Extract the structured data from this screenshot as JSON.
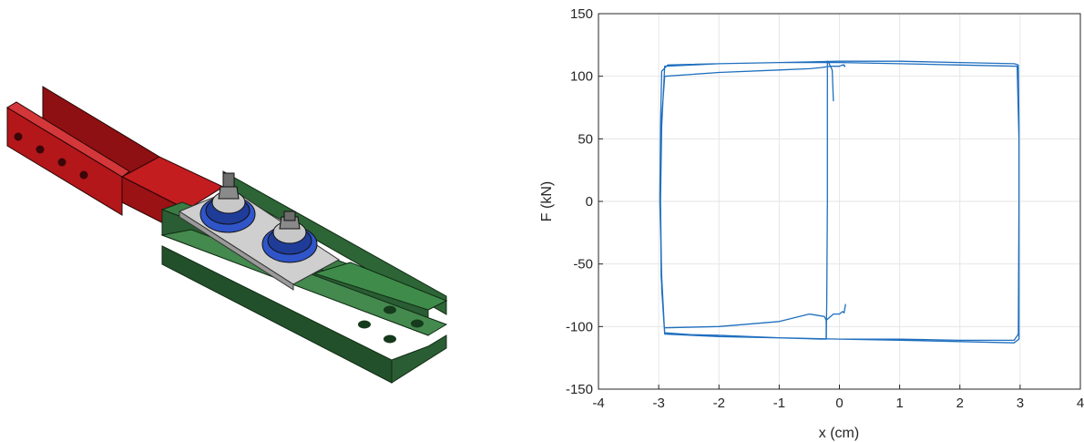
{
  "illustration": {
    "subject": "bolted friction damper assembly",
    "colors": {
      "red_member": "#c0181a",
      "green_member": "#2e6a37",
      "plate": "#cfcfcf",
      "washer": "#2f55c9",
      "bolt": "#8a8a8a"
    }
  },
  "chart_data": {
    "type": "line",
    "title": "",
    "xlabel": "x (cm)",
    "ylabel": "F (kN)",
    "xlim": [
      -4,
      4
    ],
    "ylim": [
      -150,
      150
    ],
    "xticks": [
      -4,
      -3,
      -2,
      -1,
      0,
      1,
      2,
      3,
      4
    ],
    "yticks": [
      -150,
      -100,
      -50,
      0,
      50,
      100,
      150
    ],
    "grid": true,
    "line_color": "#1f6fbf",
    "series": [
      {
        "x": [
          -0.1,
          -0.12,
          -0.18,
          -0.2,
          -0.2,
          -0.21,
          -0.22,
          -0.3,
          -1.0,
          -2.0,
          -2.9,
          -2.95,
          -2.97,
          -2.95,
          -2.9,
          -2.0,
          -1.0,
          0.0,
          1.0,
          2.0,
          2.9,
          2.97,
          2.98,
          2.98,
          2.97,
          2.9,
          2.0,
          1.0,
          0.0,
          -1.0,
          -2.0,
          -2.9,
          -2.95,
          -2.98,
          -2.97,
          -2.95,
          -2.85,
          -2.0,
          -1.0,
          0.0,
          1.0,
          2.0,
          2.95,
          2.98,
          2.98,
          2.9,
          2.0,
          1.0,
          0.0,
          -1.0,
          -2.0,
          -2.9,
          -2.96,
          -2.97,
          -2.96,
          -2.9,
          -2.0,
          -1.0,
          -0.5,
          -0.3,
          -0.15,
          0.0,
          0.05,
          0.08,
          0.08,
          0.1
        ],
        "y": [
          80,
          105,
          111,
          112,
          0,
          -80,
          -110,
          -110,
          -109,
          -107,
          -106,
          -70,
          0,
          60,
          108,
          110,
          111,
          112,
          112,
          111,
          110,
          109,
          60,
          0,
          -106,
          -111,
          -111,
          -110,
          -110,
          -109,
          -108,
          -106,
          -60,
          0,
          60,
          104,
          109,
          110,
          111,
          111,
          110,
          109,
          108,
          50,
          -110,
          -113,
          -112,
          -111,
          -110,
          -109,
          -108,
          -105,
          -60,
          0,
          60,
          100,
          103,
          105,
          106,
          107,
          108,
          108,
          109,
          109,
          108,
          108
        ]
      },
      {
        "x": [
          -0.22,
          -0.22,
          -0.25,
          -0.5,
          -1.0,
          -2.0,
          -2.9
        ],
        "y": [
          -110,
          -95,
          -92,
          -90,
          -96,
          -100,
          -101
        ]
      },
      {
        "x": [
          -0.22,
          -0.1,
          0.0,
          0.05,
          0.08,
          0.08,
          0.1,
          0.1
        ],
        "y": [
          -95,
          -90,
          -90,
          -88,
          -89,
          -88,
          -83,
          -82
        ]
      }
    ]
  }
}
